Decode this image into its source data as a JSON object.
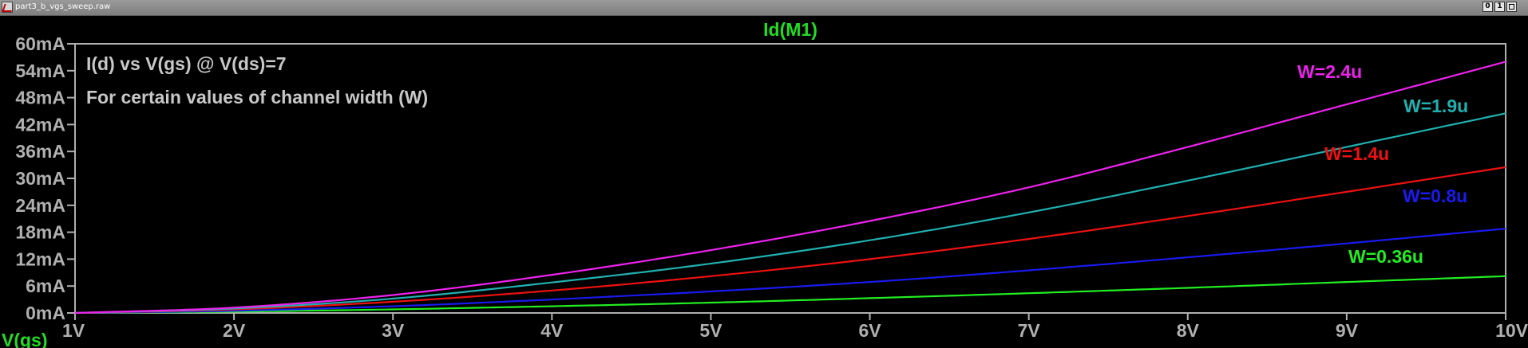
{
  "window": {
    "title": "part3_b_vgs_sweep.raw"
  },
  "window_buttons": {
    "minimize": "0",
    "restore": "1",
    "close": ""
  },
  "colors": {
    "background": "#000000",
    "axis": "#b0b0b0",
    "trace_label": "#22dd22"
  },
  "chart_data": {
    "type": "line",
    "title": "Id(M1)",
    "xlabel": "V(gs)",
    "ylabel": "",
    "xlim": [
      1,
      10
    ],
    "ylim": [
      0,
      60
    ],
    "grid": false,
    "x_ticks": [
      "1V",
      "2V",
      "3V",
      "4V",
      "5V",
      "6V",
      "7V",
      "8V",
      "9V",
      "10V"
    ],
    "x_tick_values": [
      1,
      2,
      3,
      4,
      5,
      6,
      7,
      8,
      9,
      10
    ],
    "y_ticks": [
      "0mA",
      "6mA",
      "12mA",
      "18mA",
      "24mA",
      "30mA",
      "36mA",
      "42mA",
      "48mA",
      "54mA",
      "60mA"
    ],
    "y_tick_values": [
      0,
      6,
      12,
      18,
      24,
      30,
      36,
      42,
      48,
      54,
      60
    ],
    "annotations": [
      "I(d) vs V(gs) @ V(ds)=7",
      "For certain values of channel width (W)"
    ],
    "x": [
      1,
      2,
      3,
      4,
      5,
      6,
      7,
      8,
      9,
      10
    ],
    "series": [
      {
        "name": "W=2.4u",
        "color": "#ee22ee",
        "values": [
          0,
          1.2,
          4.0,
          8.5,
          14.0,
          20.5,
          28.0,
          37.0,
          46.5,
          56.0
        ]
      },
      {
        "name": "W=1.9u",
        "color": "#20b0b0",
        "values": [
          0,
          1.0,
          3.2,
          6.8,
          11.0,
          16.2,
          22.4,
          29.5,
          37.0,
          44.5
        ]
      },
      {
        "name": "W=1.4u",
        "color": "#ee1111",
        "values": [
          0,
          0.8,
          2.5,
          5.0,
          8.2,
          12.0,
          16.5,
          21.6,
          27.0,
          32.5
        ]
      },
      {
        "name": "W=0.8u",
        "color": "#1a1aee",
        "values": [
          0,
          0.5,
          1.5,
          3.0,
          4.8,
          6.9,
          9.5,
          12.4,
          15.5,
          18.8
        ]
      },
      {
        "name": "W=0.36u",
        "color": "#22ee22",
        "values": [
          0,
          0.3,
          0.8,
          1.5,
          2.3,
          3.3,
          4.4,
          5.6,
          6.9,
          8.2
        ]
      }
    ]
  }
}
